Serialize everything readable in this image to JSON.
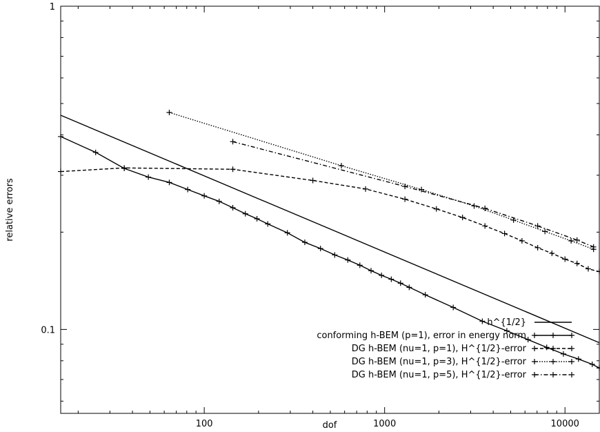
{
  "chart_data": {
    "type": "line",
    "title": "",
    "xlabel": "dof",
    "ylabel": "relative errors",
    "xscale": "log",
    "yscale": "log",
    "xlim": [
      16,
      15500
    ],
    "ylim": [
      0.055,
      1
    ],
    "x_ticks": [
      {
        "value": 100,
        "label": "100"
      },
      {
        "value": 1000,
        "label": "1000"
      },
      {
        "value": 10000,
        "label": "10000"
      }
    ],
    "y_ticks": [
      {
        "value": 0.1,
        "label": "0.1"
      },
      {
        "value": 1,
        "label": "1"
      }
    ],
    "grid": false,
    "legend_position": "bottom-right",
    "series": [
      {
        "name": "h^{1/2}",
        "style": "solid",
        "markers": false,
        "x": [
          16,
          15500
        ],
        "y": [
          0.46,
          0.091
        ]
      },
      {
        "name": "conforming h-BEM (p=1), error in energy norm",
        "style": "solid",
        "markers": true,
        "x": [
          16,
          25,
          36,
          49,
          64,
          81,
          100,
          121,
          144,
          169,
          196,
          225,
          289,
          361,
          441,
          529,
          625,
          729,
          841,
          961,
          1089,
          1225,
          1369,
          1681,
          2401,
          3481,
          4761,
          6241,
          7921,
          9801,
          11881,
          14161,
          15500
        ],
        "y": [
          0.395,
          0.353,
          0.315,
          0.296,
          0.285,
          0.271,
          0.259,
          0.249,
          0.238,
          0.228,
          0.22,
          0.212,
          0.199,
          0.186,
          0.178,
          0.17,
          0.164,
          0.158,
          0.152,
          0.147,
          0.143,
          0.139,
          0.135,
          0.128,
          0.117,
          0.106,
          0.099,
          0.093,
          0.088,
          0.084,
          0.081,
          0.078,
          0.076
        ]
      },
      {
        "name": "DG h-BEM (nu=1, p=1), H^{1/2}-error",
        "style": "dashed",
        "markers": true,
        "x": [
          16,
          36,
          144,
          400,
          784,
          1296,
          1936,
          2704,
          3600,
          4624,
          5776,
          7056,
          8464,
          10000,
          11664,
          13456,
          15500
        ],
        "y": [
          0.308,
          0.316,
          0.313,
          0.289,
          0.272,
          0.253,
          0.236,
          0.222,
          0.209,
          0.198,
          0.188,
          0.179,
          0.172,
          0.165,
          0.16,
          0.154,
          0.151
        ]
      },
      {
        "name": "DG h-BEM (nu=1, p=3), H^{1/2}-error",
        "style": "dotted",
        "markers": true,
        "x": [
          64,
          576,
          1600,
          3136,
          5184,
          7744,
          10816,
          14400
        ],
        "y": [
          0.469,
          0.321,
          0.271,
          0.241,
          0.218,
          0.201,
          0.188,
          0.177
        ]
      },
      {
        "name": "DG h-BEM (nu=1, p=5), H^{1/2}-error",
        "style": "dashdot",
        "markers": true,
        "x": [
          144,
          1296,
          3600,
          7056,
          11664,
          14400
        ],
        "y": [
          0.381,
          0.277,
          0.237,
          0.209,
          0.189,
          0.18
        ]
      }
    ]
  }
}
